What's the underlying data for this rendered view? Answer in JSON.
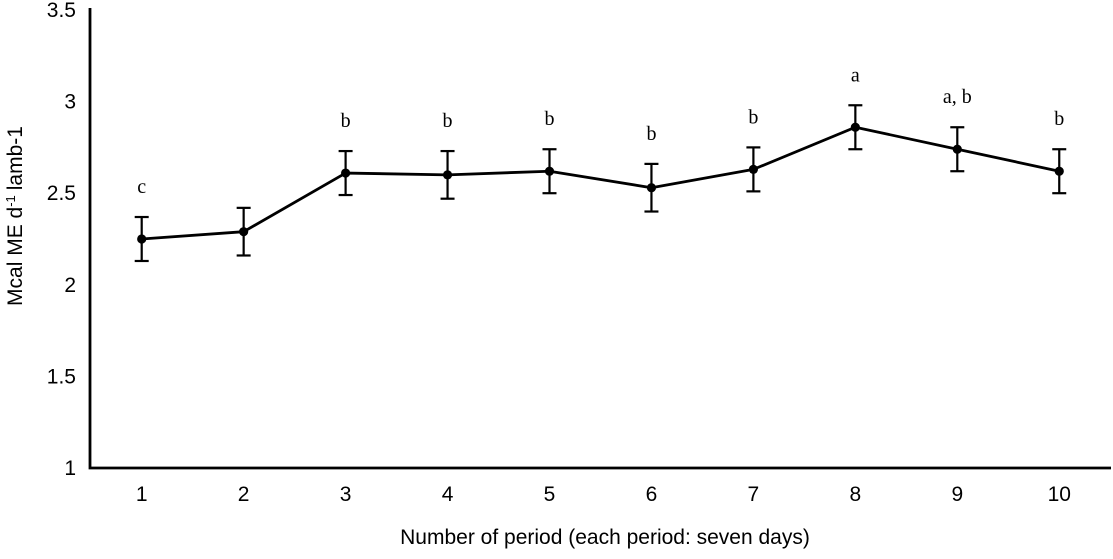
{
  "figure": {
    "background": "#ffffff"
  },
  "chart_data": {
    "type": "line",
    "title": "",
    "xlabel": "Number of period (each period: seven days)",
    "ylabel": "Mcal ME d⁻¹ lamb-1",
    "ylabel_parts": {
      "base": "Mcal ME d",
      "superscript": "-1",
      "suffix": "lamb-1"
    },
    "x": [
      1,
      2,
      3,
      4,
      5,
      6,
      7,
      8,
      9,
      10
    ],
    "xtick_labels": [
      "1",
      "2",
      "3",
      "4",
      "5",
      "6",
      "7",
      "8",
      "9",
      "10"
    ],
    "values": [
      2.25,
      2.29,
      2.61,
      2.6,
      2.62,
      2.53,
      2.63,
      2.86,
      2.74,
      2.62
    ],
    "errors": [
      0.12,
      0.13,
      0.12,
      0.13,
      0.12,
      0.13,
      0.12,
      0.12,
      0.12,
      0.12
    ],
    "sig_letters": [
      "c",
      "",
      "b",
      "b",
      "b",
      "b",
      "b",
      "a",
      "a, b",
      "b"
    ],
    "ylim": [
      1,
      3.5
    ],
    "yticks": [
      1,
      1.5,
      2,
      2.5,
      3,
      3.5
    ],
    "ytick_labels": [
      "1",
      "1.5",
      "2",
      "2.5",
      "3",
      "3.5"
    ],
    "grid": false,
    "legend_position": "none",
    "marker": "filled-circle",
    "colors": {
      "line": "#000000",
      "marker": "#000000",
      "error_bar": "#000000",
      "text": "#000000",
      "background": "#ffffff"
    }
  }
}
